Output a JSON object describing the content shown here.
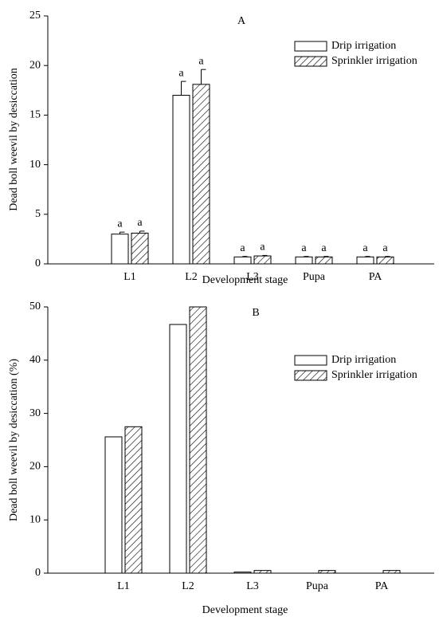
{
  "chart_data": [
    {
      "type": "bar",
      "title": "A",
      "xlabel": "Development stage",
      "ylabel": "Dead boll weevil by desiccation",
      "categories": [
        "L1",
        "L2",
        "L3",
        "Pupa",
        "PA"
      ],
      "series": [
        {
          "name": "Drip irrigation",
          "color": "#ffffff",
          "hatch": false,
          "values": [
            3.0,
            17.0,
            0.7,
            0.7,
            0.7
          ],
          "errors": [
            0.2,
            1.4,
            0.05,
            0.05,
            0.05
          ],
          "letters": [
            "a",
            "a",
            "a",
            "a",
            "a"
          ]
        },
        {
          "name": "Sprinkler irrigation",
          "color": "#ffffff",
          "hatch": true,
          "values": [
            3.1,
            18.1,
            0.8,
            0.7,
            0.7
          ],
          "errors": [
            0.2,
            1.5,
            0.05,
            0.05,
            0.05
          ],
          "letters": [
            "a",
            "a",
            "a",
            "a",
            "a"
          ]
        }
      ],
      "ylim": [
        0,
        25
      ],
      "yticks": [
        0,
        5,
        10,
        15,
        20,
        25
      ]
    },
    {
      "type": "bar",
      "title": "B",
      "xlabel": "Development stage",
      "ylabel": "Dead boll weevil by desiccation (%)",
      "categories": [
        "L1",
        "L2",
        "L3",
        "Pupa",
        "PA"
      ],
      "series": [
        {
          "name": "Drip irrigation",
          "color": "#ffffff",
          "hatch": false,
          "values": [
            25.6,
            46.7,
            0.2,
            0,
            0
          ]
        },
        {
          "name": "Sprinkler irrigation",
          "color": "#ffffff",
          "hatch": true,
          "values": [
            27.5,
            50.0,
            0.5,
            0.5,
            0.5
          ]
        }
      ],
      "ylim": [
        0,
        50
      ],
      "yticks": [
        0,
        10,
        20,
        30,
        40,
        50
      ]
    }
  ]
}
